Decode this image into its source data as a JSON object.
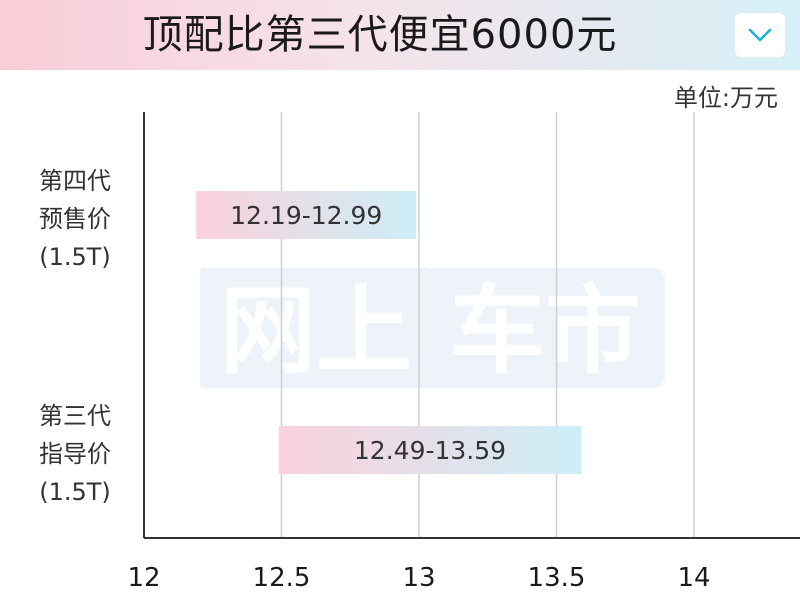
{
  "title": "顶配比第三代便宜6000元",
  "unit_label": "单位:万元",
  "icons": {
    "toggle": "chevron-down-icon"
  },
  "watermark": {
    "text": "网上车市"
  },
  "colors": {
    "accent": "#1ab0d8",
    "bar_start": "#fbd1dc",
    "bar_end": "#cdeef7",
    "header_start": "#f9cdd8",
    "header_end": "#d6f0f7"
  },
  "categories": [
    {
      "lines": [
        "第四代",
        "预售价",
        "(1.5T)"
      ]
    },
    {
      "lines": [
        "第三代",
        "指导价",
        "(1.5T)"
      ]
    }
  ],
  "chart_data": {
    "type": "bar",
    "orientation": "horizontal",
    "series": [
      {
        "category": "第四代预售价(1.5T)",
        "low": 12.19,
        "high": 12.99,
        "label": "12.19-12.99"
      },
      {
        "category": "第三代指导价(1.5T)",
        "low": 12.49,
        "high": 13.59,
        "label": "12.49-13.59"
      }
    ],
    "xlim": [
      12,
      14.4
    ],
    "xticks": [
      12,
      12.5,
      13,
      13.5,
      14
    ],
    "xticklabels": [
      "12",
      "12.5",
      "13",
      "13.5",
      "14"
    ],
    "grid": true,
    "unit": "万元"
  }
}
